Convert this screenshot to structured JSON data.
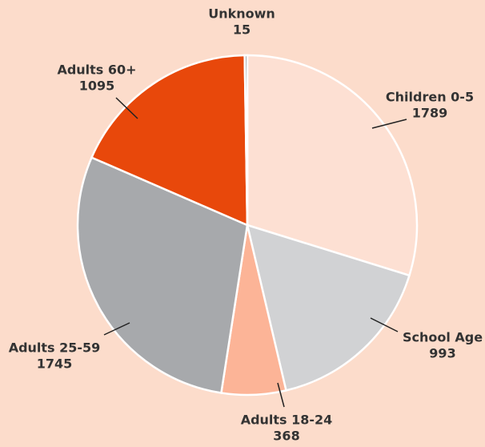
{
  "chart_data": {
    "type": "pie",
    "categories": [
      "Children 0-5",
      "School Age",
      "Adults 18-24",
      "Adults 25-59",
      "Adults 60+",
      "Unknown"
    ],
    "values": [
      1789,
      993,
      368,
      1745,
      1095,
      15
    ],
    "colors": [
      "#fde0d3",
      "#d1d2d4",
      "#fcb497",
      "#a7a9ac",
      "#e8480b",
      "#8a8c8f"
    ]
  }
}
